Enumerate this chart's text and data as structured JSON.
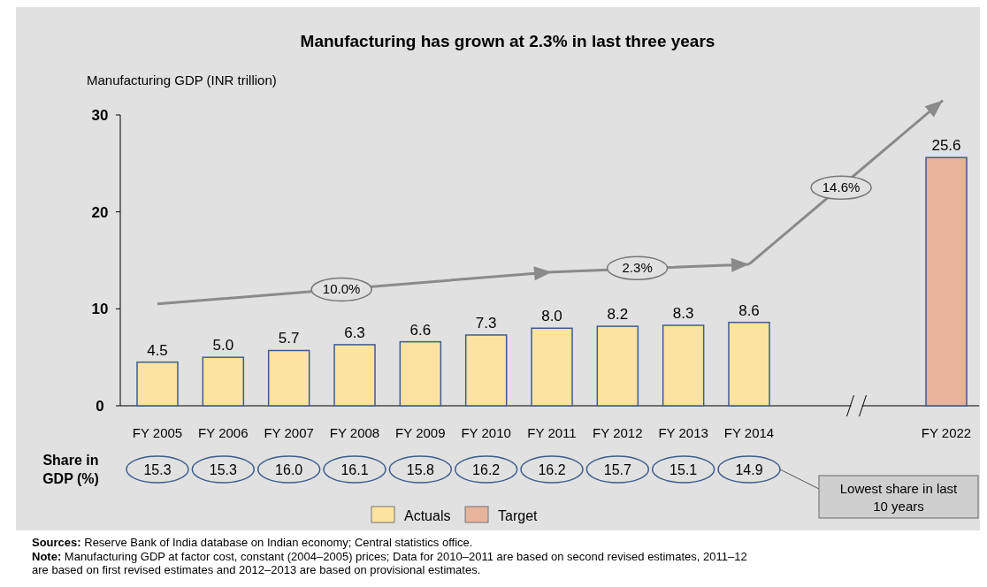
{
  "chart_data": {
    "type": "bar",
    "title": "Manufacturing has grown at 2.3% in last three years",
    "ylabel": "Manufacturing GDP (INR trillion)",
    "categories": [
      "FY 2005",
      "FY 2006",
      "FY 2007",
      "FY 2008",
      "FY 2009",
      "FY 2010",
      "FY 2011",
      "FY 2012",
      "FY 2013",
      "FY 2014",
      null,
      null,
      "FY 2022"
    ],
    "series": [
      {
        "name": "Actuals",
        "color": "#fde3a1",
        "values": [
          4.5,
          5.0,
          5.7,
          6.3,
          6.6,
          7.3,
          8.0,
          8.2,
          8.3,
          8.6,
          null,
          null,
          null
        ],
        "value_labels": [
          "4.5",
          "5.0",
          "5.7",
          "6.3",
          "6.6",
          "7.3",
          "8.0",
          "8.2",
          "8.3",
          "8.6",
          null,
          null,
          null
        ]
      },
      {
        "name": "Target",
        "color": "#e6b39b",
        "values": [
          null,
          null,
          null,
          null,
          null,
          null,
          null,
          null,
          null,
          null,
          null,
          null,
          25.6
        ],
        "value_labels": [
          null,
          null,
          null,
          null,
          null,
          null,
          null,
          null,
          null,
          null,
          null,
          null,
          "25.6"
        ]
      }
    ],
    "ylim": [
      0,
      30
    ],
    "yticks": [
      0,
      10,
      20,
      30
    ],
    "legend": "bottom",
    "annotations": [
      "10.0%",
      "2.3%",
      "14.6%",
      "Share in GDP (%)",
      "Lowest share in last 10 years",
      "Sources: Reserve Bank of India database on Indian economy; Central statistics office.",
      "Note: Manufacturing GDP at factor cost, constant (2004–2005) prices; Data for 2010–2011 are based on second revised estimates, 2011–12 are based on first revised estimates and 2012–2013 are based on provisional estimates.",
      "15.3",
      "15.3",
      "16.0",
      "16.1",
      "15.8",
      "16.2",
      "16.2",
      "15.7",
      "15.1",
      "14.9"
    ]
  }
}
